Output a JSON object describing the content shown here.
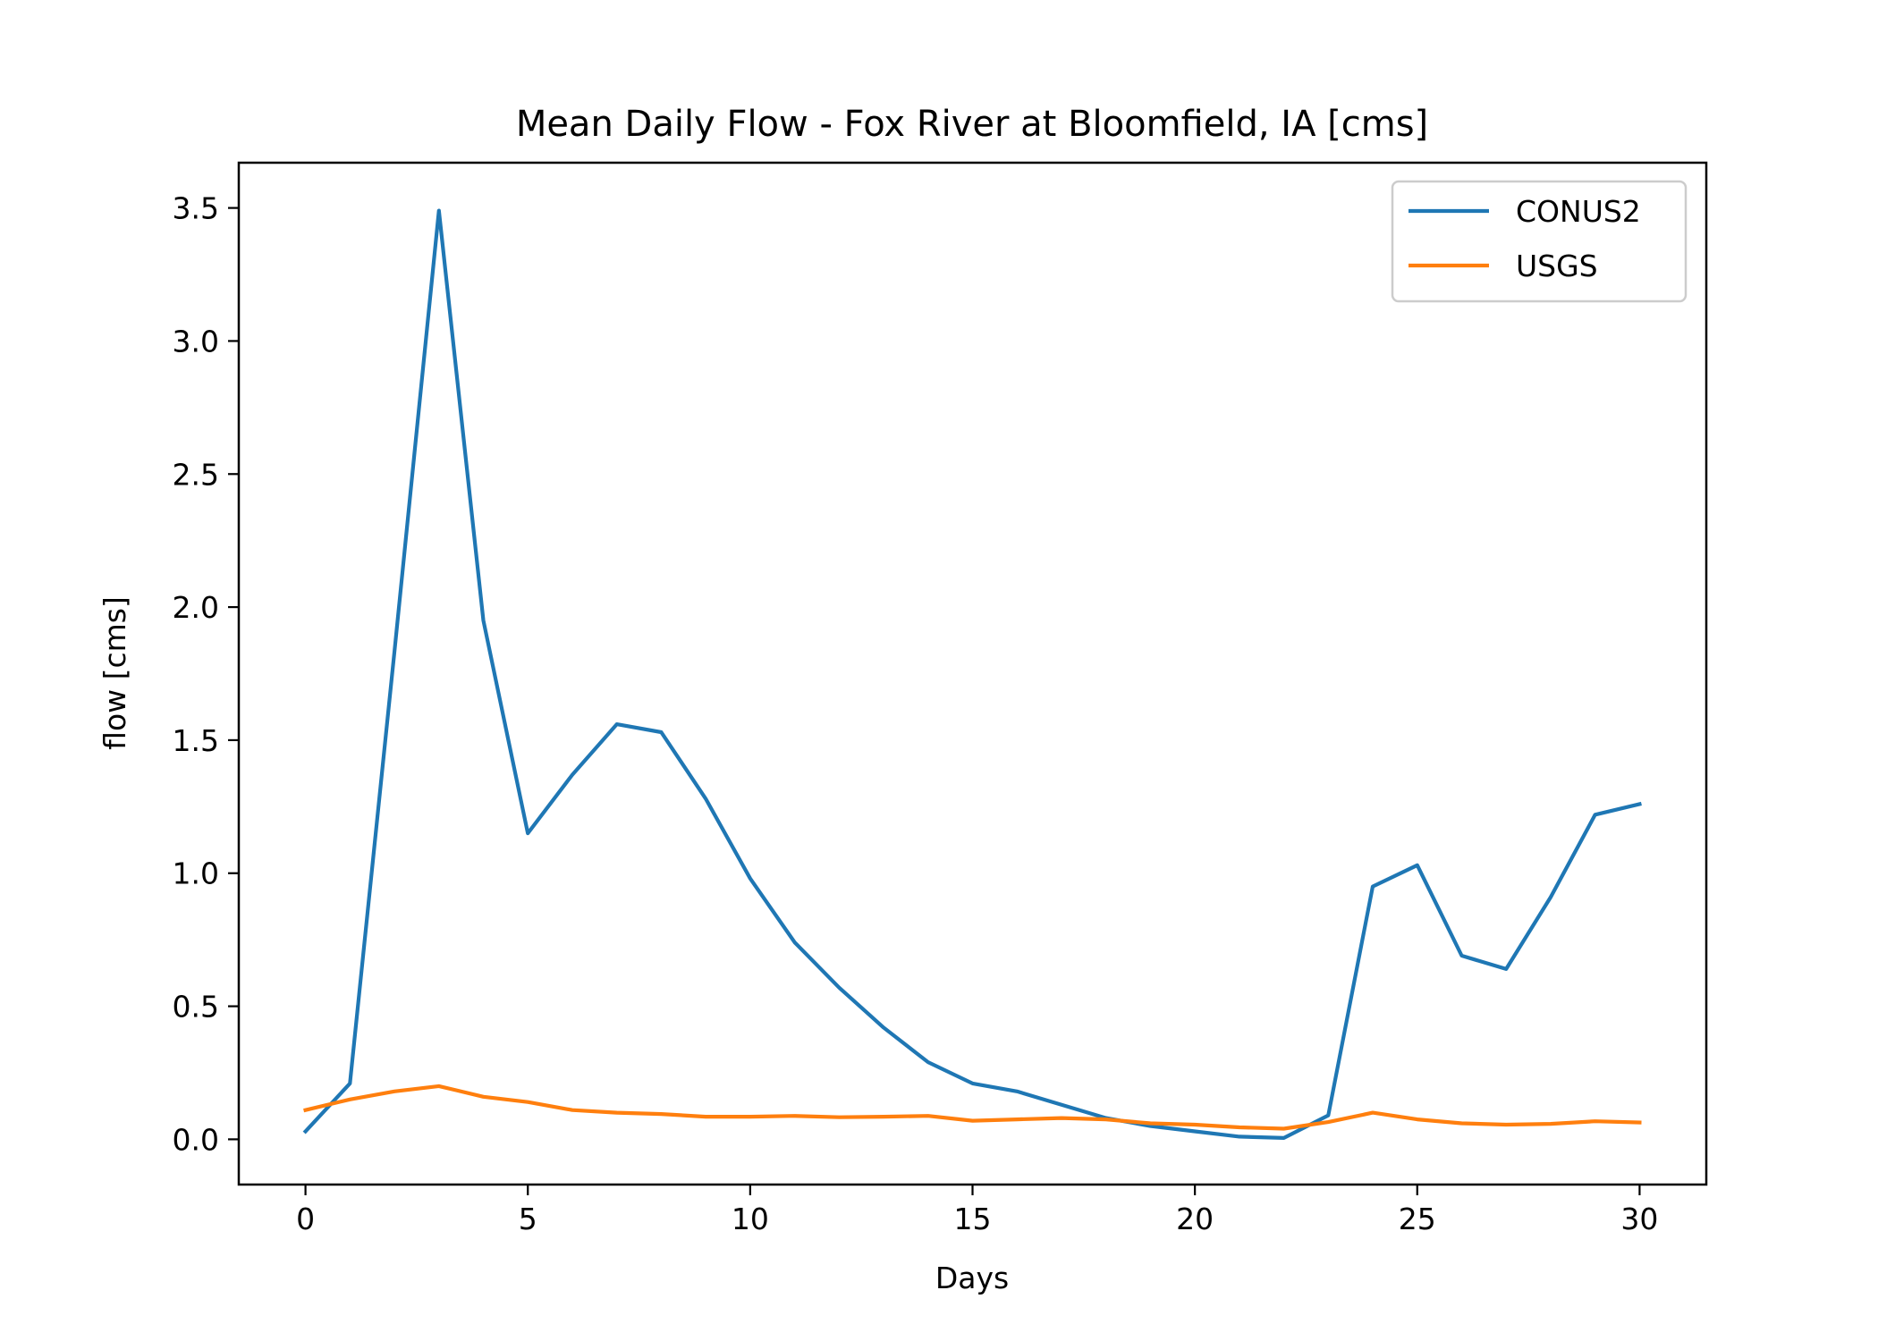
{
  "chart_data": {
    "type": "line",
    "title": "Mean Daily Flow - Fox River at Bloomfield, IA [cms]",
    "xlabel": "Days",
    "ylabel": "flow [cms]",
    "xlim": [
      -1.5,
      31.5
    ],
    "ylim": [
      -0.17,
      3.67
    ],
    "xticks": [
      0,
      5,
      10,
      15,
      20,
      25,
      30
    ],
    "xtick_labels": [
      "0",
      "5",
      "10",
      "15",
      "20",
      "25",
      "30"
    ],
    "yticks": [
      0.0,
      0.5,
      1.0,
      1.5,
      2.0,
      2.5,
      3.0,
      3.5
    ],
    "ytick_labels": [
      "0.0",
      "0.5",
      "1.0",
      "1.5",
      "2.0",
      "2.5",
      "3.0",
      "3.5"
    ],
    "grid": false,
    "legend_position": "top-right",
    "x": [
      0,
      1,
      2,
      3,
      4,
      5,
      6,
      7,
      8,
      9,
      10,
      11,
      12,
      13,
      14,
      15,
      16,
      17,
      18,
      19,
      20,
      21,
      22,
      23,
      24,
      25,
      26,
      27,
      28,
      29,
      30
    ],
    "series": [
      {
        "name": "CONUS2",
        "color": "#1f77b4",
        "values": [
          0.03,
          0.21,
          1.83,
          3.49,
          1.95,
          1.15,
          1.37,
          1.56,
          1.53,
          1.28,
          0.98,
          0.74,
          0.57,
          0.42,
          0.29,
          0.21,
          0.18,
          0.13,
          0.08,
          0.05,
          0.03,
          0.01,
          0.005,
          0.09,
          0.95,
          1.03,
          0.69,
          0.64,
          0.91,
          1.22,
          1.26
        ]
      },
      {
        "name": "USGS",
        "color": "#ff7f0e",
        "values": [
          0.11,
          0.15,
          0.18,
          0.2,
          0.16,
          0.14,
          0.11,
          0.1,
          0.095,
          0.085,
          0.085,
          0.088,
          0.083,
          0.085,
          0.088,
          0.07,
          0.075,
          0.08,
          0.075,
          0.06,
          0.055,
          0.045,
          0.04,
          0.065,
          0.1,
          0.075,
          0.06,
          0.055,
          0.058,
          0.068,
          0.063
        ]
      }
    ]
  }
}
